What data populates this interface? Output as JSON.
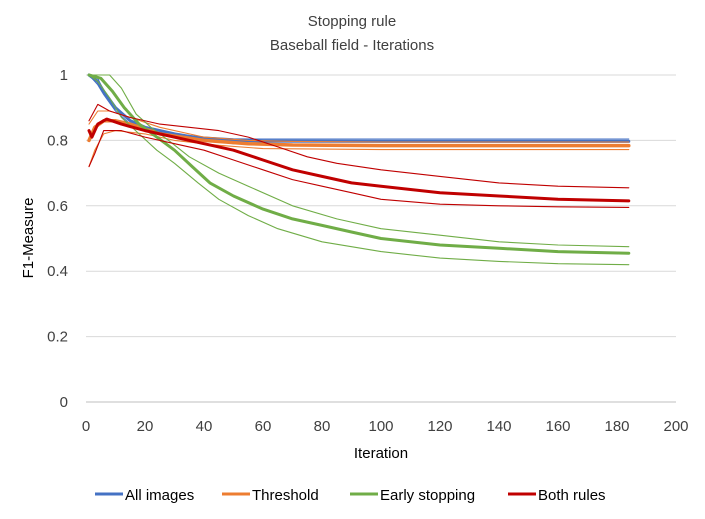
{
  "chart_data": {
    "type": "line",
    "title": "Stopping rule",
    "subtitle": "Baseball field - Iterations",
    "xlabel": "Iteration",
    "ylabel": "F1-Measure",
    "xlim": [
      0,
      200
    ],
    "ylim": [
      0,
      1
    ],
    "xticks": [
      "0",
      "20",
      "40",
      "60",
      "80",
      "100",
      "120",
      "140",
      "160",
      "180",
      "200"
    ],
    "yticks": [
      "0",
      "0.2",
      "0.4",
      "0.6",
      "0.8",
      "1"
    ],
    "grid": "horizontal",
    "legend_position": "bottom",
    "legend": [
      {
        "label": "All images",
        "color": "#4472C4"
      },
      {
        "label": "Threshold",
        "color": "#ED7D31"
      },
      {
        "label": "Early stopping",
        "color": "#70AD47"
      },
      {
        "label": "Both rules",
        "color": "#C00000"
      }
    ],
    "series": [
      {
        "name": "All images",
        "color": "#4472C4",
        "role": "upper",
        "points": [
          [
            1,
            1
          ],
          [
            4,
            0.99
          ],
          [
            6,
            0.95
          ],
          [
            10,
            0.9
          ],
          [
            15,
            0.86
          ],
          [
            20,
            0.84
          ],
          [
            30,
            0.82
          ],
          [
            40,
            0.81
          ],
          [
            50,
            0.805
          ],
          [
            60,
            0.804
          ],
          [
            100,
            0.804
          ],
          [
            184,
            0.804
          ]
        ]
      },
      {
        "name": "All images",
        "color": "#4472C4",
        "role": "mean",
        "points": [
          [
            1,
            1
          ],
          [
            4,
            0.98
          ],
          [
            6,
            0.95
          ],
          [
            10,
            0.9
          ],
          [
            15,
            0.86
          ],
          [
            20,
            0.84
          ],
          [
            30,
            0.82
          ],
          [
            40,
            0.805
          ],
          [
            50,
            0.8
          ],
          [
            60,
            0.798
          ],
          [
            100,
            0.797
          ],
          [
            184,
            0.797
          ]
        ]
      },
      {
        "name": "All images",
        "color": "#4472C4",
        "role": "lower",
        "points": [
          [
            1,
            1
          ],
          [
            4,
            0.97
          ],
          [
            6,
            0.94
          ],
          [
            10,
            0.89
          ],
          [
            15,
            0.85
          ],
          [
            20,
            0.83
          ],
          [
            30,
            0.81
          ],
          [
            40,
            0.8
          ],
          [
            50,
            0.79
          ],
          [
            60,
            0.787
          ],
          [
            100,
            0.786
          ],
          [
            184,
            0.786
          ]
        ]
      },
      {
        "name": "Threshold",
        "color": "#ED7D31",
        "role": "upper",
        "points": [
          [
            1,
            0.85
          ],
          [
            4,
            0.89
          ],
          [
            8,
            0.89
          ],
          [
            15,
            0.87
          ],
          [
            25,
            0.84
          ],
          [
            40,
            0.81
          ],
          [
            55,
            0.8
          ],
          [
            70,
            0.797
          ],
          [
            100,
            0.795
          ],
          [
            184,
            0.795
          ]
        ]
      },
      {
        "name": "Threshold",
        "color": "#ED7D31",
        "role": "mean",
        "points": [
          [
            1,
            0.8
          ],
          [
            3,
            0.84
          ],
          [
            6,
            0.86
          ],
          [
            10,
            0.86
          ],
          [
            15,
            0.85
          ],
          [
            25,
            0.82
          ],
          [
            40,
            0.8
          ],
          [
            55,
            0.79
          ],
          [
            70,
            0.786
          ],
          [
            100,
            0.784
          ],
          [
            184,
            0.784
          ]
        ]
      },
      {
        "name": "Threshold",
        "color": "#ED7D31",
        "role": "lower",
        "points": [
          [
            1,
            0.72
          ],
          [
            3,
            0.77
          ],
          [
            6,
            0.82
          ],
          [
            10,
            0.83
          ],
          [
            20,
            0.82
          ],
          [
            30,
            0.8
          ],
          [
            45,
            0.785
          ],
          [
            60,
            0.775
          ],
          [
            100,
            0.772
          ],
          [
            184,
            0.772
          ]
        ]
      },
      {
        "name": "Early stopping",
        "color": "#70AD47",
        "role": "upper",
        "points": [
          [
            1,
            1
          ],
          [
            8,
            1
          ],
          [
            12,
            0.96
          ],
          [
            17,
            0.88
          ],
          [
            22,
            0.84
          ],
          [
            28,
            0.8
          ],
          [
            35,
            0.75
          ],
          [
            45,
            0.7
          ],
          [
            55,
            0.66
          ],
          [
            70,
            0.6
          ],
          [
            85,
            0.56
          ],
          [
            100,
            0.53
          ],
          [
            120,
            0.51
          ],
          [
            140,
            0.49
          ],
          [
            160,
            0.48
          ],
          [
            184,
            0.475
          ]
        ]
      },
      {
        "name": "Early stopping",
        "color": "#70AD47",
        "role": "mean",
        "points": [
          [
            1,
            1
          ],
          [
            5,
            0.99
          ],
          [
            9,
            0.95
          ],
          [
            13,
            0.9
          ],
          [
            18,
            0.85
          ],
          [
            24,
            0.81
          ],
          [
            30,
            0.77
          ],
          [
            36,
            0.72
          ],
          [
            42,
            0.67
          ],
          [
            50,
            0.63
          ],
          [
            60,
            0.59
          ],
          [
            70,
            0.56
          ],
          [
            80,
            0.54
          ],
          [
            90,
            0.52
          ],
          [
            100,
            0.5
          ],
          [
            120,
            0.48
          ],
          [
            140,
            0.47
          ],
          [
            160,
            0.46
          ],
          [
            184,
            0.455
          ]
        ]
      },
      {
        "name": "Early stopping",
        "color": "#70AD47",
        "role": "lower",
        "points": [
          [
            1,
            1
          ],
          [
            4,
            0.98
          ],
          [
            8,
            0.93
          ],
          [
            12,
            0.87
          ],
          [
            18,
            0.82
          ],
          [
            24,
            0.77
          ],
          [
            30,
            0.73
          ],
          [
            38,
            0.67
          ],
          [
            45,
            0.62
          ],
          [
            55,
            0.57
          ],
          [
            65,
            0.53
          ],
          [
            80,
            0.49
          ],
          [
            100,
            0.46
          ],
          [
            120,
            0.44
          ],
          [
            140,
            0.43
          ],
          [
            160,
            0.423
          ],
          [
            184,
            0.42
          ]
        ]
      },
      {
        "name": "Both rules",
        "color": "#C00000",
        "role": "upper",
        "points": [
          [
            1,
            0.86
          ],
          [
            4,
            0.91
          ],
          [
            8,
            0.89
          ],
          [
            15,
            0.87
          ],
          [
            25,
            0.85
          ],
          [
            35,
            0.84
          ],
          [
            45,
            0.83
          ],
          [
            55,
            0.81
          ],
          [
            65,
            0.78
          ],
          [
            75,
            0.75
          ],
          [
            85,
            0.73
          ],
          [
            100,
            0.71
          ],
          [
            120,
            0.69
          ],
          [
            140,
            0.67
          ],
          [
            160,
            0.66
          ],
          [
            184,
            0.655
          ]
        ]
      },
      {
        "name": "Both rules",
        "color": "#C00000",
        "role": "mean",
        "points": [
          [
            1,
            0.83
          ],
          [
            2,
            0.81
          ],
          [
            4,
            0.85
          ],
          [
            7,
            0.865
          ],
          [
            12,
            0.85
          ],
          [
            20,
            0.83
          ],
          [
            30,
            0.81
          ],
          [
            40,
            0.79
          ],
          [
            50,
            0.77
          ],
          [
            60,
            0.74
          ],
          [
            70,
            0.71
          ],
          [
            80,
            0.69
          ],
          [
            90,
            0.67
          ],
          [
            100,
            0.66
          ],
          [
            120,
            0.64
          ],
          [
            140,
            0.63
          ],
          [
            160,
            0.62
          ],
          [
            184,
            0.615
          ]
        ]
      },
      {
        "name": "Both rules",
        "color": "#C00000",
        "role": "lower",
        "points": [
          [
            1,
            0.72
          ],
          [
            3,
            0.76
          ],
          [
            6,
            0.83
          ],
          [
            12,
            0.83
          ],
          [
            20,
            0.81
          ],
          [
            30,
            0.79
          ],
          [
            40,
            0.77
          ],
          [
            50,
            0.74
          ],
          [
            60,
            0.71
          ],
          [
            70,
            0.68
          ],
          [
            80,
            0.66
          ],
          [
            90,
            0.64
          ],
          [
            100,
            0.62
          ],
          [
            120,
            0.605
          ],
          [
            140,
            0.6
          ],
          [
            160,
            0.597
          ],
          [
            184,
            0.595
          ]
        ]
      }
    ]
  }
}
